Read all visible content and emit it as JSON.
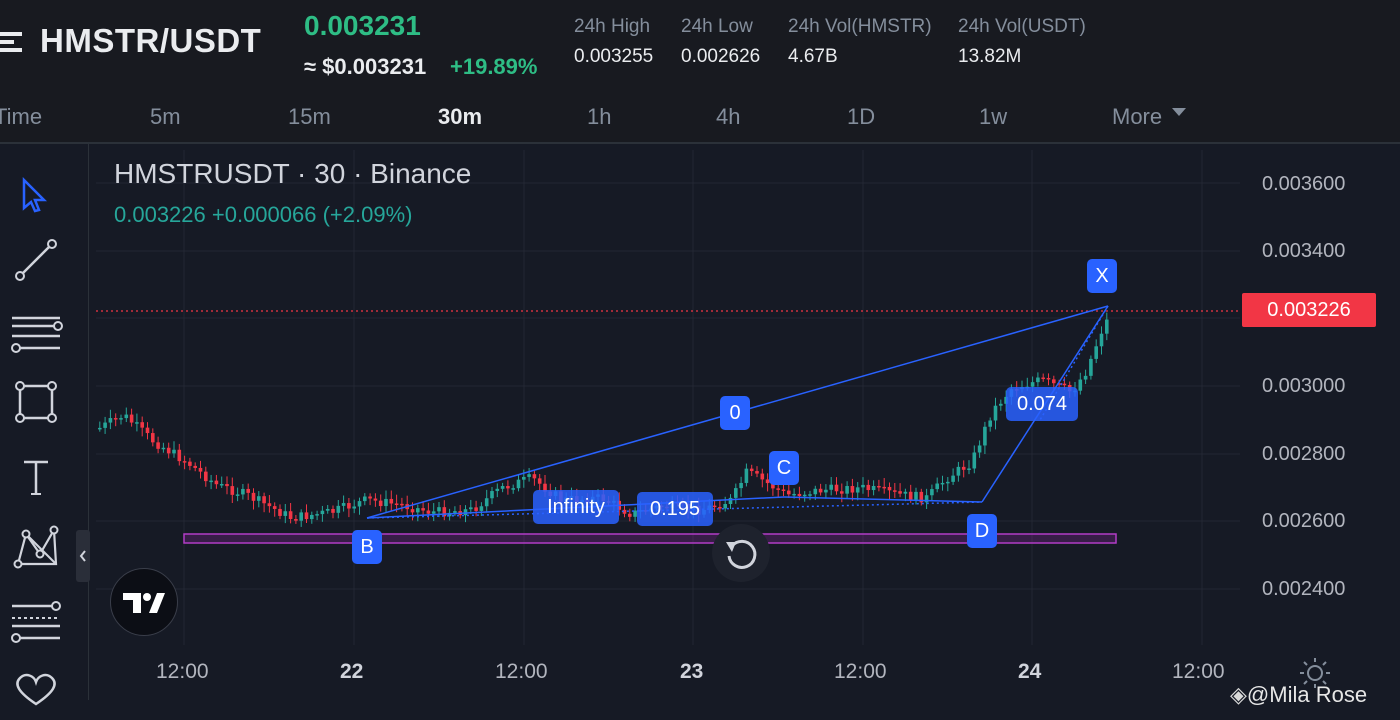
{
  "header": {
    "pair": "HMSTR/USDT",
    "last_price": "0.003231",
    "usd_price": "≈ $0.003231",
    "change_pct": "+19.89%",
    "stats": [
      {
        "label": "24h High",
        "value": "0.003255"
      },
      {
        "label": "24h Low",
        "value": "0.002626"
      },
      {
        "label": "24h Vol(HMSTR)",
        "value": "4.67B"
      },
      {
        "label": "24h Vol(USDT)",
        "value": "13.82M"
      }
    ]
  },
  "timeframes": {
    "items": [
      "Time",
      "5m",
      "15m",
      "30m",
      "1h",
      "4h",
      "1D",
      "1w"
    ],
    "active": "30m",
    "more_label": "More"
  },
  "chart": {
    "symbol_line": "HMSTRUSDT · 30 · Binance",
    "ohlc_line": "0.003226  +0.000066 (+2.09%)",
    "current_price_label": "0.003226",
    "y_axis_labels": [
      "0.003600",
      "0.003400",
      "0.003000",
      "0.002800",
      "0.002600",
      "0.002400"
    ],
    "x_axis_labels": [
      "12:00",
      "22",
      "12:00",
      "23",
      "12:00",
      "24",
      "12:00"
    ],
    "pattern_points": [
      "X",
      "B",
      "C",
      "D"
    ],
    "pattern_ratios": [
      "0",
      "Infinity",
      "0.195",
      "0.074"
    ]
  },
  "colors": {
    "up": "#26a69a",
    "down": "#f23645",
    "pattern": "#2962ff",
    "box": "#9c27b0"
  },
  "watermark": "@Mila Rose"
}
